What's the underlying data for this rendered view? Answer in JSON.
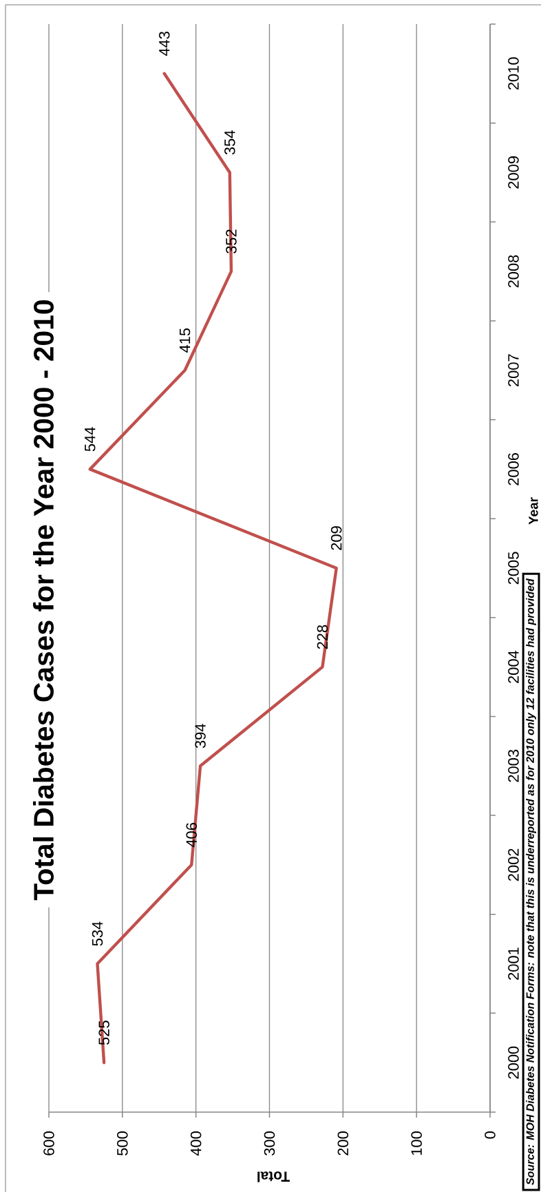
{
  "chart_data": {
    "type": "line",
    "orientation": "horizontal",
    "title": "Total Diabetes Cases for the Year 2000 - 2010",
    "xlabel": "Total",
    "ylabel": "Year",
    "categories": [
      "2010",
      "2009",
      "2008",
      "2007",
      "2006",
      "2005",
      "2004",
      "2003",
      "2002",
      "2001",
      "2000"
    ],
    "values": [
      443,
      354,
      352,
      415,
      544,
      209,
      228,
      394,
      406,
      534,
      525
    ],
    "color": "#c0504d",
    "xlim": [
      600,
      0
    ],
    "xticks": [
      600,
      500,
      400,
      300,
      200,
      100,
      0
    ],
    "grid": "x",
    "data_labels": true,
    "annotations": [
      "Source: MOH Diabetes Notification Forms: note that this is underreported as for 2010 only 12 facilities had provided"
    ]
  }
}
